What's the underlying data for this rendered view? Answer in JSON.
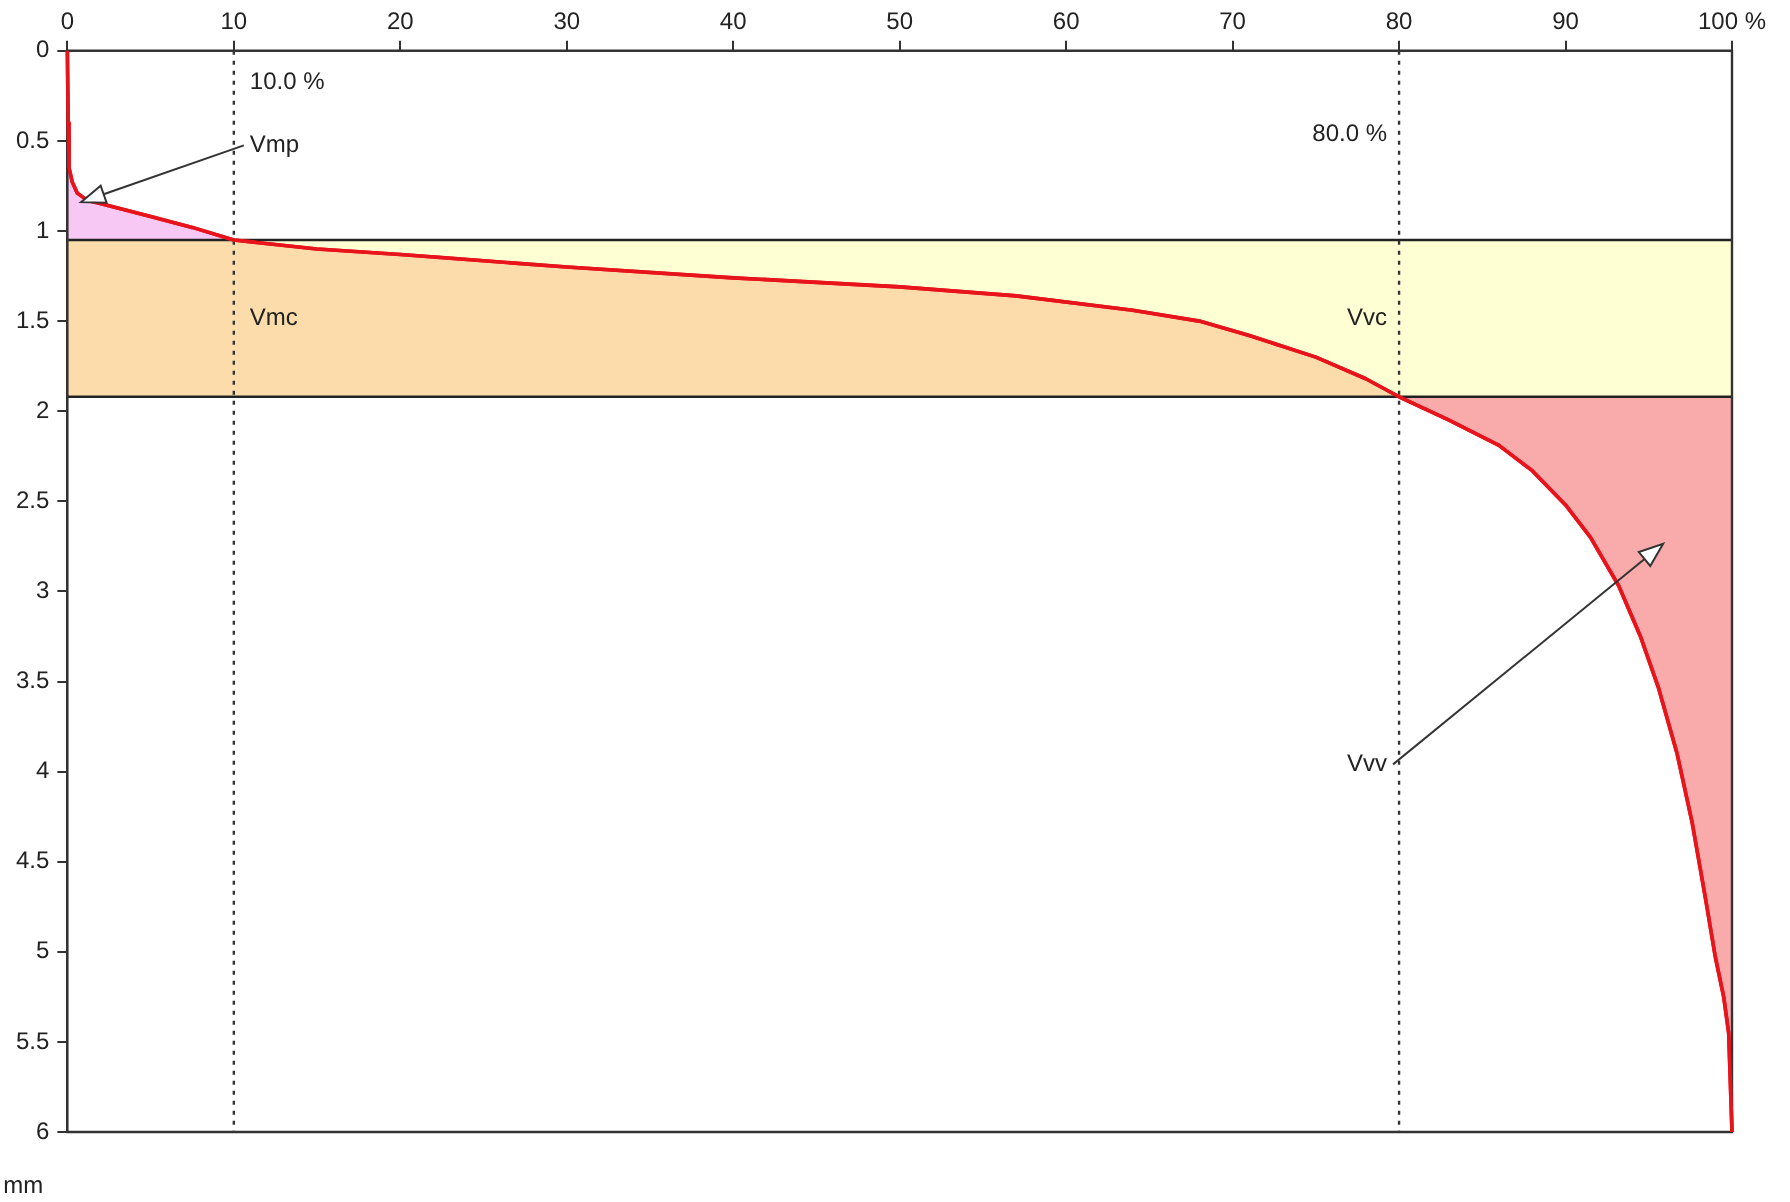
{
  "chart_data": {
    "type": "line",
    "ylabel": "mm",
    "x": [
      0,
      0.05,
      0.1,
      0.3,
      0.6,
      1.2,
      2.5,
      5,
      7.5,
      10,
      15,
      20,
      30,
      40,
      50,
      57,
      64,
      68,
      71,
      75,
      78,
      80,
      83,
      86,
      88,
      90,
      91.5,
      93.2,
      94.5,
      95.6,
      96.7,
      97.6,
      98.4,
      99,
      99.5,
      99.8,
      100
    ],
    "values": [
      0,
      0.4,
      0.65,
      0.73,
      0.79,
      0.83,
      0.86,
      0.92,
      0.98,
      1.05,
      1.1,
      1.13,
      1.2,
      1.26,
      1.31,
      1.36,
      1.44,
      1.5,
      1.58,
      1.7,
      1.82,
      1.92,
      2.05,
      2.19,
      2.33,
      2.52,
      2.7,
      2.97,
      3.25,
      3.54,
      3.9,
      4.28,
      4.7,
      5.03,
      5.25,
      5.45,
      6
    ],
    "color": "#e8141c",
    "marker": "none",
    "line_style": "solid",
    "grid": false,
    "legend": false,
    "xlim": [
      0,
      100
    ],
    "xticks": [
      0,
      10,
      20,
      30,
      40,
      50,
      60,
      70,
      80,
      90,
      {
        "value": 100,
        "label": "100 %"
      }
    ],
    "ylim": [
      6,
      0
    ],
    "yticks": [
      0,
      0.5,
      1,
      1.5,
      2,
      2.5,
      3,
      3.5,
      4,
      4.5,
      5,
      5.5,
      6
    ],
    "ref_lines": [
      {
        "axis": "x",
        "value": 10,
        "label": "10.0 %",
        "color": "#333333",
        "line_style": "dotted"
      },
      {
        "axis": "x",
        "value": 80,
        "label": "80.0 %",
        "color": "#333333",
        "line_style": "dotted"
      },
      {
        "axis": "y",
        "value": 1.05,
        "color": "#222222",
        "line_style": "solid"
      },
      {
        "axis": "y",
        "value": 1.92,
        "color": "#222222",
        "line_style": "solid"
      }
    ],
    "annotations": [
      "Vmp",
      "Vmc",
      "Vvc",
      "Vvv"
    ]
  }
}
